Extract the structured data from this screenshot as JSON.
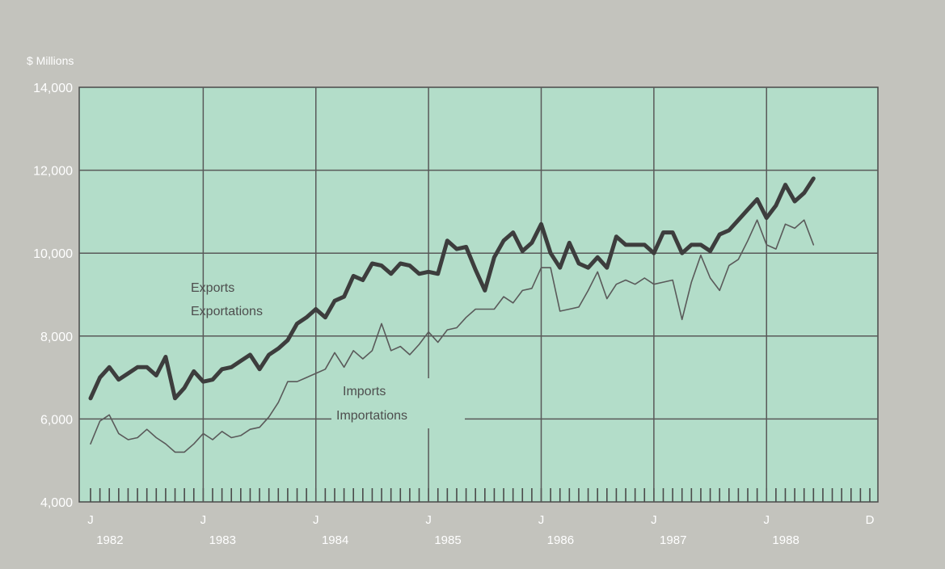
{
  "chart_data": {
    "type": "line",
    "ylabel": "$ Millions",
    "ylim": [
      4000,
      14000
    ],
    "yticks": [
      4000,
      6000,
      8000,
      10000,
      12000,
      14000
    ],
    "ytick_labels": [
      "4,000",
      "6,000",
      "8,000",
      "10,000",
      "12,000",
      "14,000"
    ],
    "x_range": [
      "1982-01",
      "1988-12"
    ],
    "x_month_labels": [
      {
        "label": "J",
        "date": "1982-01"
      },
      {
        "label": "J",
        "date": "1983-01"
      },
      {
        "label": "J",
        "date": "1984-01"
      },
      {
        "label": "J",
        "date": "1985-01"
      },
      {
        "label": "J",
        "date": "1986-01"
      },
      {
        "label": "J",
        "date": "1987-01"
      },
      {
        "label": "J",
        "date": "1988-01"
      },
      {
        "label": "D",
        "date": "1988-12"
      }
    ],
    "x_year_labels": [
      "1982",
      "1983",
      "1984",
      "1985",
      "1986",
      "1987",
      "1988"
    ],
    "grid": true,
    "colors": {
      "exports": "#3d3d3d",
      "imports": "#5a5a5a",
      "plot_bg": "#b3ddc9",
      "page_bg": "#c3c3bd",
      "grid": "#595959"
    },
    "series": [
      {
        "name": "Exports",
        "name_fr": "Exportations",
        "start": "1982-01",
        "values": [
          6500,
          7000,
          7250,
          6950,
          7100,
          7250,
          7250,
          7050,
          7500,
          6500,
          6750,
          7150,
          6900,
          6950,
          7200,
          7250,
          7400,
          7550,
          7200,
          7550,
          7700,
          7900,
          8300,
          8450,
          8650,
          8450,
          8850,
          8950,
          9450,
          9350,
          9750,
          9700,
          9500,
          9750,
          9700,
          9500,
          9550,
          9500,
          10300,
          10100,
          10150,
          9600,
          9100,
          9900,
          10300,
          10500,
          10050,
          10250,
          10700,
          10000,
          9650,
          10250,
          9750,
          9650,
          9900,
          9650,
          10400,
          10200,
          10200,
          10200,
          10000,
          10500,
          10500,
          10000,
          10200,
          10200,
          10050,
          10450,
          10550,
          10800,
          11050,
          11300,
          10850,
          11150,
          11650,
          11250,
          11450,
          11800
        ]
      },
      {
        "name": "Imports",
        "name_fr": "Importations",
        "start": "1982-01",
        "values": [
          5400,
          5950,
          6100,
          5650,
          5500,
          5550,
          5750,
          5550,
          5400,
          5200,
          5200,
          5400,
          5650,
          5500,
          5700,
          5550,
          5600,
          5750,
          5800,
          6050,
          6400,
          6900,
          6900,
          7000,
          7100,
          7200,
          7600,
          7250,
          7650,
          7450,
          7650,
          8300,
          7650,
          7750,
          7550,
          7800,
          8100,
          7850,
          8150,
          8200,
          8450,
          8650,
          8650,
          8650,
          8950,
          8800,
          9100,
          9150,
          9650,
          9650,
          8600,
          8650,
          8700,
          9100,
          9550,
          8900,
          9250,
          9350,
          9250,
          9400,
          9250,
          9300,
          9350,
          8400,
          9300,
          9950,
          9400,
          9100,
          9700,
          9850,
          10300,
          10800,
          10200,
          10100,
          10700,
          10600,
          10800,
          10200
        ]
      }
    ]
  }
}
